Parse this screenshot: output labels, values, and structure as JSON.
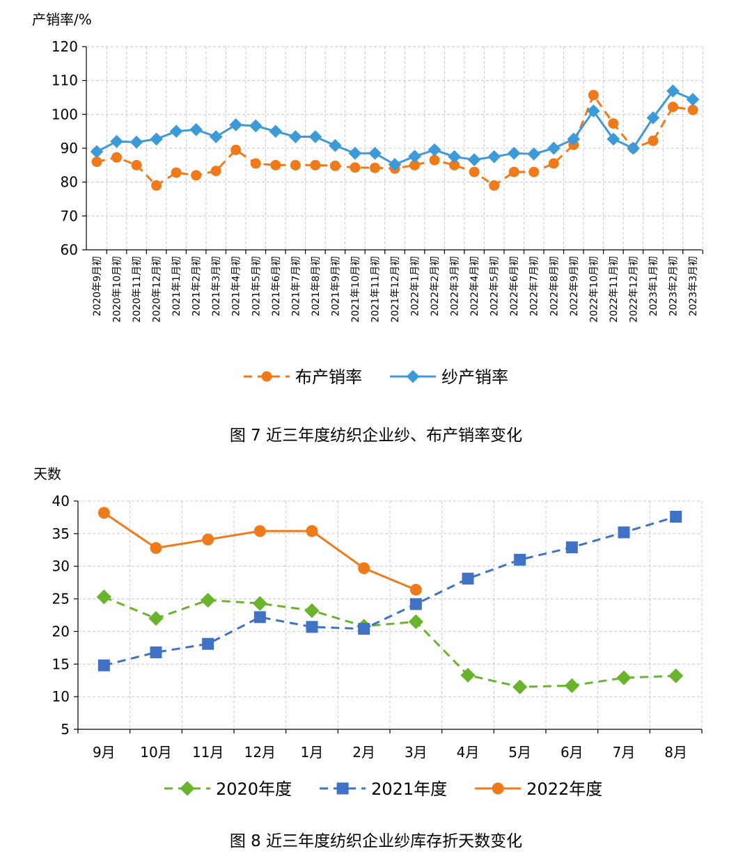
{
  "chart_data": [
    {
      "type": "line",
      "ylabel": "产销率/%",
      "ylim": [
        60,
        120
      ],
      "yticks": [
        60,
        70,
        80,
        90,
        100,
        110,
        120
      ],
      "grid": true,
      "categories": [
        "2020年9月初",
        "2020年10月初",
        "2020年11月初",
        "2020年12月初",
        "2021年1月初",
        "2021年2月初",
        "2021年3月初",
        "2021年4月初",
        "2021年5月初",
        "2021年6月初",
        "2021年7月初",
        "2021年8月初",
        "2021年9月初",
        "2021年10月初",
        "2021年11月初",
        "2021年12月初",
        "2022年1月初",
        "2022年2月初",
        "2022年3月初",
        "2022年4月初",
        "2022年5月初",
        "2022年6月初",
        "2022年7月初",
        "2022年8月初",
        "2022年9月初",
        "2022年10月初",
        "2022年11月初",
        "2022年12月初",
        "2023年1月初",
        "2023年2月初",
        "2023年3月初"
      ],
      "series": [
        {
          "name": "布产销率",
          "color": "#f07a1a",
          "marker": "circle",
          "dashed": true,
          "values": [
            86,
            87.3,
            85,
            79,
            82.8,
            82,
            83.3,
            89.5,
            85.5,
            85,
            85,
            85,
            84.8,
            84.3,
            84.2,
            84,
            85,
            86.5,
            85,
            83,
            79,
            83,
            83,
            85.5,
            91,
            105.7,
            97.3,
            90,
            92.2,
            102.2,
            101.3
          ]
        },
        {
          "name": "纱产销率",
          "color": "#3d9ad9",
          "marker": "diamond",
          "dashed": false,
          "values": [
            89,
            92,
            91.8,
            92.7,
            95,
            95.5,
            93.4,
            96.9,
            96.6,
            95,
            93.4,
            93.4,
            90.8,
            88.5,
            88.5,
            85.2,
            87.6,
            89.5,
            87.5,
            86.6,
            87.5,
            88.5,
            88.3,
            90,
            92.7,
            101,
            92.7,
            90,
            99,
            106.9,
            104.4
          ]
        }
      ],
      "legend_position": "bottom",
      "caption": "图 7   近三年度纺织企业纱、布产销率变化"
    },
    {
      "type": "line",
      "ylabel": "天数",
      "ylim": [
        5,
        40
      ],
      "yticks": [
        5,
        10,
        15,
        20,
        25,
        30,
        35,
        40
      ],
      "grid": true,
      "categories": [
        "9月",
        "10月",
        "11月",
        "12月",
        "1月",
        "2月",
        "3月",
        "4月",
        "5月",
        "6月",
        "7月",
        "8月"
      ],
      "series": [
        {
          "name": "2020年度",
          "color": "#6ab42d",
          "marker": "diamond",
          "dashed": true,
          "values": [
            25.3,
            22,
            24.8,
            24.3,
            23.2,
            20.8,
            21.5,
            13.3,
            11.5,
            11.7,
            12.9,
            13.2
          ]
        },
        {
          "name": "2021年度",
          "color": "#3f72c4",
          "marker": "square",
          "dashed": true,
          "values": [
            14.8,
            16.8,
            18.1,
            22.2,
            20.7,
            20.4,
            24.2,
            28.1,
            31,
            32.9,
            35.2,
            37.6
          ]
        },
        {
          "name": "2022年度",
          "color": "#f07a1a",
          "marker": "circle",
          "dashed": false,
          "values": [
            38.2,
            32.8,
            34.1,
            35.4,
            35.4,
            29.7,
            26.4,
            null,
            null,
            null,
            null,
            null
          ]
        }
      ],
      "legend_position": "bottom",
      "caption": "图 8   近三年度纺织企业纱库存折天数变化"
    }
  ]
}
